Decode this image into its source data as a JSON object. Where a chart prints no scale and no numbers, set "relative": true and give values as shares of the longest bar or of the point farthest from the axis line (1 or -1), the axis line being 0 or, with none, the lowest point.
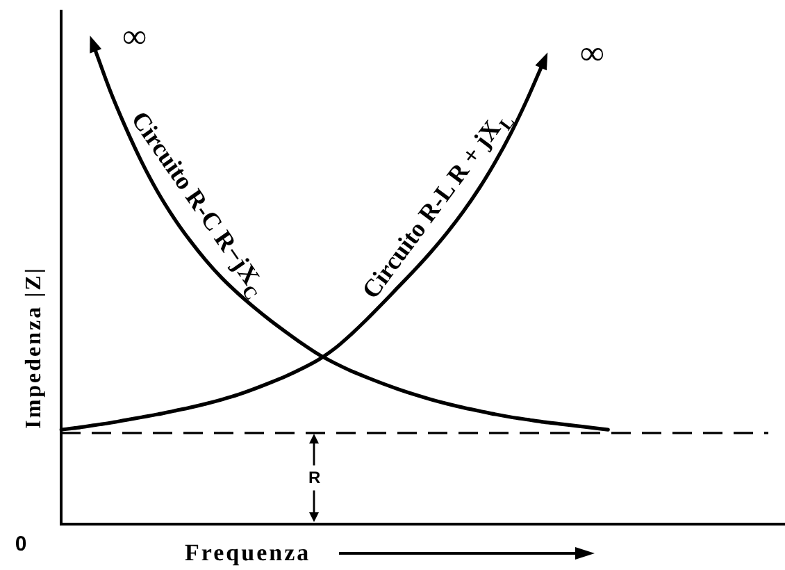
{
  "chart_data": {
    "type": "line",
    "xlabel": "Frequenza",
    "ylabel": "Impedenza |Z|",
    "relative": true,
    "categories": [
      null,
      null,
      null,
      null,
      null,
      null,
      null,
      null,
      null,
      null,
      null,
      null,
      null,
      null,
      null,
      null,
      null,
      null,
      null,
      null,
      null,
      null,
      null,
      null,
      null,
      null,
      null,
      null,
      null,
      null,
      null,
      null,
      null,
      null,
      null,
      null,
      null,
      null,
      null,
      null,
      null,
      null,
      null,
      null,
      null,
      null
    ],
    "series": [
      {
        "name": "Circuito R-C R−jX$_{C}$",
        "color": "#000000",
        "values": [
          null,
          null,
          1,
          0.908,
          0.828,
          0.756,
          0.693,
          0.639,
          0.592,
          0.55,
          0.513,
          0.481,
          0.452,
          0.425,
          0.4,
          0.376,
          0.354,
          0.336,
          0.32,
          0.306,
          0.293,
          0.281,
          0.27,
          0.26,
          0.251,
          0.243,
          0.236,
          0.229,
          0.223,
          0.218,
          0.213,
          0.209,
          0.205,
          0.201,
          0.197,
          null,
          null,
          null,
          null,
          null,
          null,
          null,
          null,
          null,
          null,
          null
        ]
      },
      {
        "name": "Circuito R-L R + jX$_{L}$",
        "color": "#000000",
        "values": [
          0.197,
          0.201,
          0.206,
          0.211,
          0.217,
          0.223,
          0.229,
          0.236,
          0.243,
          0.251,
          0.26,
          0.27,
          0.282,
          0.295,
          0.309,
          0.325,
          0.343,
          0.366,
          0.395,
          0.427,
          0.461,
          0.496,
          0.531,
          0.568,
          0.608,
          0.652,
          0.701,
          0.756,
          0.818,
          0.888,
          0.965,
          null,
          null,
          null,
          null,
          null,
          null,
          null,
          null,
          null,
          null,
          null,
          null,
          null,
          null,
          null
        ]
      }
    ],
    "ref_lines": [
      {
        "axis": "y",
        "value": 0.19,
        "label": "R",
        "line_style": "dashed",
        "color": "#000000"
      }
    ],
    "annotations": [
      "0",
      "∞",
      "∞"
    ]
  }
}
